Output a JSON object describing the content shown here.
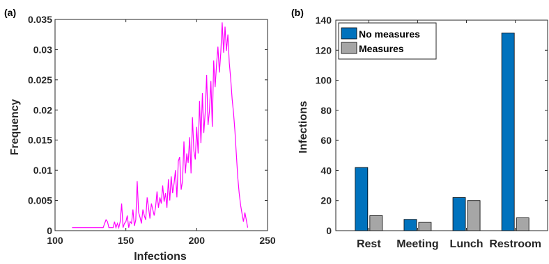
{
  "chart_data": [
    {
      "panel_label": "(a)",
      "type": "line",
      "xlabel": "Infections",
      "ylabel": "Frequency",
      "xlim": [
        100,
        250
      ],
      "ylim": [
        0,
        0.035
      ],
      "xticks": [
        "100",
        "150",
        "200",
        "250"
      ],
      "yticks": [
        "0",
        "0.005",
        "0.01",
        "0.015",
        "0.02",
        "0.025",
        "0.03",
        "0.035"
      ],
      "xtick_values": [
        100,
        150,
        200,
        250
      ],
      "ytick_values": [
        0,
        0.005,
        0.01,
        0.015,
        0.02,
        0.025,
        0.03,
        0.035
      ],
      "grid": false,
      "series_color": "#ff00ff",
      "x": [
        112,
        114,
        116,
        118,
        120,
        122,
        124,
        126,
        128,
        130,
        132,
        134,
        135,
        136,
        137,
        138,
        139,
        140,
        141,
        142,
        143,
        144,
        145,
        146,
        147,
        148,
        149,
        150,
        151,
        152,
        153,
        154,
        155,
        156,
        157,
        158,
        159,
        160,
        161,
        162,
        163,
        164,
        165,
        166,
        167,
        168,
        169,
        170,
        171,
        172,
        173,
        174,
        175,
        176,
        177,
        178,
        179,
        180,
        181,
        182,
        183,
        184,
        185,
        186,
        187,
        188,
        189,
        190,
        191,
        192,
        193,
        194,
        195,
        196,
        197,
        198,
        199,
        200,
        201,
        202,
        203,
        204,
        205,
        206,
        207,
        208,
        209,
        210,
        211,
        212,
        213,
        214,
        215,
        216,
        217,
        218,
        219,
        220,
        221,
        222,
        223,
        224,
        225,
        226,
        227,
        228,
        229,
        230,
        231,
        232,
        233,
        234,
        235,
        236
      ],
      "y": [
        0.0005,
        0.0005,
        0.0005,
        0.0005,
        0.0005,
        0.0005,
        0.0005,
        0.0005,
        0.0005,
        0.0005,
        0.0005,
        0.0005,
        0.0012,
        0.0018,
        0.0015,
        0.0005,
        0.0005,
        0.0005,
        0.0005,
        0.0015,
        0.0005,
        0.0012,
        0.0005,
        0.0015,
        0.0045,
        0.0005,
        0.0012,
        0.0015,
        0.0025,
        0.0005,
        0.0015,
        0.0012,
        0.0035,
        0.0008,
        0.0018,
        0.0082,
        0.003,
        0.0022,
        0.0012,
        0.0035,
        0.0025,
        0.0018,
        0.0055,
        0.0038,
        0.002,
        0.0045,
        0.0035,
        0.0025,
        0.004,
        0.0065,
        0.0038,
        0.0055,
        0.0045,
        0.0075,
        0.0048,
        0.0062,
        0.0038,
        0.0085,
        0.005,
        0.009,
        0.0062,
        0.0078,
        0.01,
        0.0055,
        0.0115,
        0.0122,
        0.0068,
        0.0082,
        0.0148,
        0.0095,
        0.0128,
        0.0112,
        0.0155,
        0.0095,
        0.0188,
        0.0132,
        0.0118,
        0.0172,
        0.0128,
        0.0215,
        0.0145,
        0.0228,
        0.0162,
        0.0195,
        0.0258,
        0.0175,
        0.0198,
        0.0248,
        0.0172,
        0.0282,
        0.0238,
        0.0275,
        0.0305,
        0.0262,
        0.0295,
        0.0345,
        0.0295,
        0.0338,
        0.0298,
        0.0325,
        0.0278,
        0.0252,
        0.0218,
        0.0195,
        0.0165,
        0.0125,
        0.0088,
        0.0062,
        0.0042,
        0.0028,
        0.0015,
        0.003,
        0.0018,
        0.0005
      ]
    },
    {
      "panel_label": "(b)",
      "type": "bar",
      "xlabel": "",
      "ylabel": "Infections",
      "categories": [
        "Rest",
        "Meeting",
        "Lunch",
        "Restroom"
      ],
      "ylim": [
        0,
        140
      ],
      "yticks": [
        "0",
        "20",
        "40",
        "60",
        "80",
        "100",
        "120",
        "140"
      ],
      "ytick_values": [
        0,
        20,
        40,
        60,
        80,
        100,
        120,
        140
      ],
      "grid": false,
      "legend_position": "top-left",
      "series": [
        {
          "name": "No measures",
          "color": "#0072bd",
          "values": [
            42,
            7.5,
            22,
            131.5
          ]
        },
        {
          "name": "Measures",
          "color": "#a6a6a6",
          "values": [
            10,
            5.5,
            20,
            8.5
          ]
        }
      ]
    }
  ]
}
